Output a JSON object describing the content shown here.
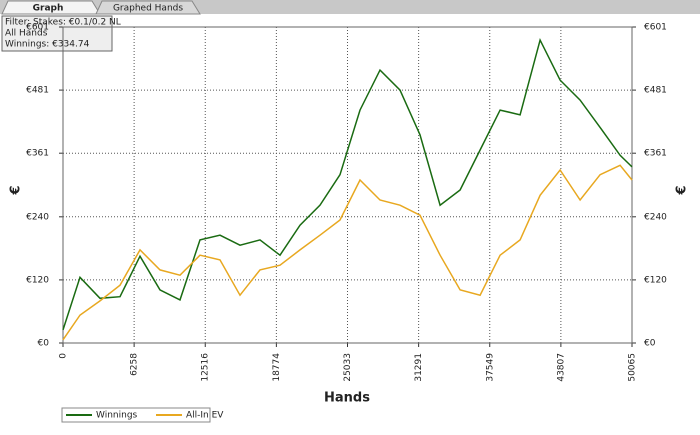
{
  "tabs": [
    "Graph",
    "Graphed Hands"
  ],
  "chart_data": {
    "type": "line",
    "annotations": [
      "Filter: Stakes: €0.1/0.2 NL",
      "All Hands",
      "Winnings: €334.74"
    ],
    "xlabel": "Hands",
    "ylabel": "€",
    "y2label": "€",
    "x": [
      0,
      1496,
      3256,
      5016,
      6776,
      8536,
      10296,
      12056,
      13816,
      15576,
      17336,
      19096,
      20856,
      22616,
      24376,
      26136,
      27896,
      29656,
      31416,
      33176,
      34936,
      36696,
      38456,
      40216,
      41976,
      43736,
      45496,
      47256,
      49016,
      50065
    ],
    "series": [
      {
        "name": "Winnings",
        "color": "#1a6b12",
        "values": [
          25,
          125,
          85,
          88,
          165,
          101,
          82,
          196,
          205,
          186,
          196,
          167,
          224,
          262,
          320,
          443,
          519,
          481,
          396,
          262,
          291,
          367,
          443,
          434,
          576,
          500,
          462,
          410,
          357,
          335
        ]
      },
      {
        "name": "All-In EV",
        "color": "#e8a820",
        "values": [
          6,
          53,
          80,
          110,
          177,
          139,
          129,
          167,
          158,
          91,
          139,
          148,
          177,
          205,
          234,
          310,
          272,
          262,
          243,
          167,
          101,
          91,
          167,
          196,
          281,
          329,
          272,
          320,
          338,
          310
        ]
      }
    ],
    "xlim": [
      0,
      50065
    ],
    "xticks": [
      0,
      6258,
      12516,
      18774,
      25033,
      31291,
      37549,
      43807,
      50065
    ],
    "ylim": [
      0,
      601
    ],
    "yticks": [
      {
        "value": 0,
        "label": "€0"
      },
      {
        "value": 120,
        "label": "€120"
      },
      {
        "value": 240,
        "label": "€240"
      },
      {
        "value": 361,
        "label": "€361"
      },
      {
        "value": 481,
        "label": "€481"
      },
      {
        "value": 601,
        "label": "€601"
      }
    ],
    "grid": true,
    "legend": "bottom-left"
  }
}
